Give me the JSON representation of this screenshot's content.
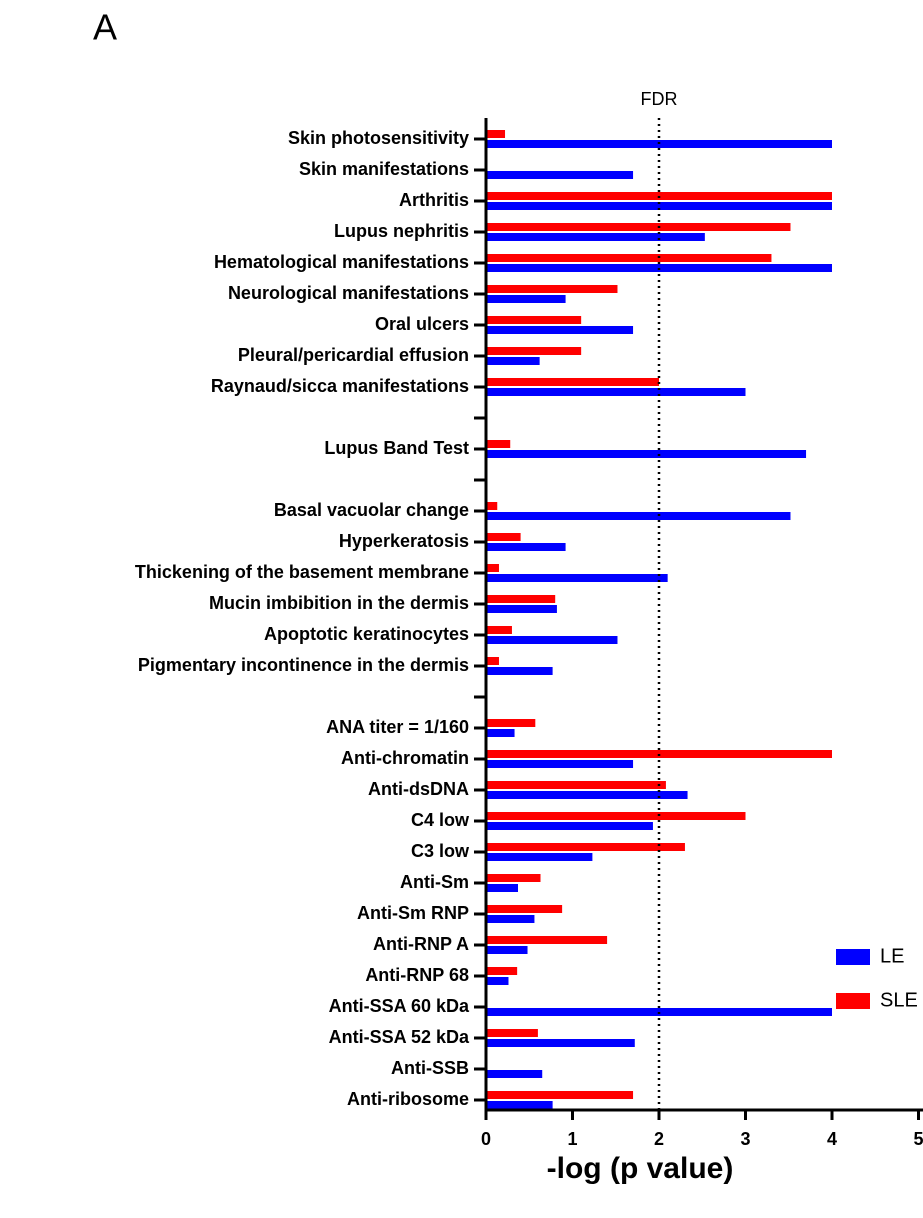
{
  "panel_label": "A",
  "chart_data": {
    "type": "hbar",
    "xlabel": "-log (p value)",
    "annotation": {
      "text": "FDR",
      "x": 2
    },
    "categories": [
      "Skin photosensitivity",
      "Skin manifestations",
      "Arthritis",
      "Lupus nephritis",
      "Hematological manifestations",
      "Neurological manifestations",
      "Oral ulcers",
      "Pleural/pericardial effusion",
      "Raynaud/sicca manifestations",
      null,
      "Lupus Band Test",
      null,
      "Basal vacuolar change",
      "Hyperkeratosis",
      "Thickening of the basement membrane",
      "Mucin imbibition in the dermis",
      "Apoptotic keratinocytes",
      "Pigmentary incontinence in the dermis",
      null,
      "ANA titer =  1/160",
      "Anti-chromatin",
      "Anti-dsDNA",
      "C4 low",
      "C3 low",
      "Anti-Sm",
      "Anti-Sm RNP",
      "Anti-RNP A",
      "Anti-RNP 68",
      "Anti-SSA 60 kDa",
      "Anti-SSA 52 kDa",
      "Anti-SSB",
      "Anti-ribosome"
    ],
    "series": [
      {
        "name": "LE",
        "color": "#0000ff",
        "values": [
          4,
          1.7,
          4,
          2.53,
          4,
          0.92,
          1.7,
          0.62,
          3,
          null,
          3.7,
          null,
          3.52,
          0.92,
          2.1,
          0.82,
          1.52,
          0.77,
          null,
          0.33,
          1.7,
          2.33,
          1.93,
          1.23,
          0.37,
          0.56,
          0.48,
          0.26,
          4,
          1.72,
          0.65,
          0.77
        ]
      },
      {
        "name": "SLE",
        "color": "#ff0000",
        "values": [
          0.22,
          null,
          4,
          3.52,
          3.3,
          1.52,
          1.1,
          1.1,
          2,
          null,
          0.28,
          null,
          0.13,
          0.4,
          0.15,
          0.8,
          0.3,
          0.15,
          null,
          0.57,
          4,
          2.08,
          3,
          2.3,
          0.63,
          0.88,
          1.4,
          0.36,
          null,
          0.6,
          null,
          1.7
        ]
      }
    ],
    "xlim": [
      0,
      5
    ],
    "xticks": [
      0,
      1,
      2,
      3,
      4,
      5
    ],
    "legend": "right"
  }
}
